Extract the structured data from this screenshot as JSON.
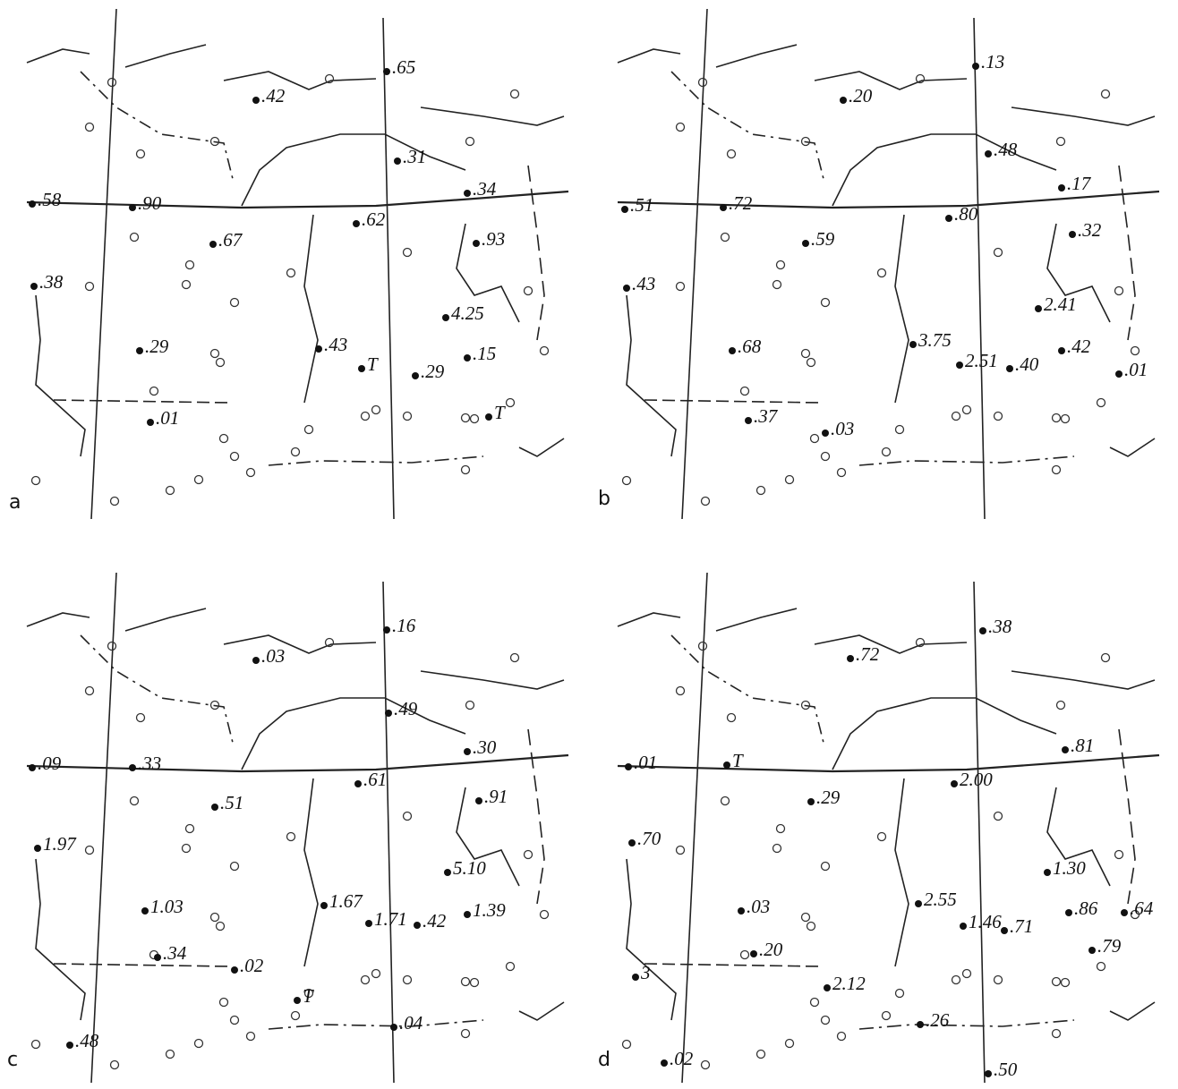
{
  "panels": [
    {
      "letter": "a",
      "stations": [
        ".65",
        ".42",
        ".31",
        ".34",
        ".58",
        ".90",
        ".62",
        ".67",
        ".93",
        ".38",
        "4.25",
        ".29",
        ".43",
        "T",
        ".29",
        ".15",
        ".01",
        "T"
      ]
    },
    {
      "letter": "b",
      "stations": [
        ".13",
        ".20",
        ".48",
        ".17",
        ".51",
        ".72",
        ".80",
        ".59",
        ".32",
        ".43",
        "2.41",
        ".68",
        "3.75",
        "2.51",
        ".40",
        ".42",
        ".01",
        ".37",
        ".03"
      ]
    },
    {
      "letter": "c",
      "stations": [
        ".16",
        ".03",
        ".49",
        ".30",
        ".09",
        ".33",
        ".61",
        ".51",
        ".91",
        "1.97",
        "5.10",
        "1.03",
        "1.67",
        "1.71",
        ".42",
        "1.39",
        ".34",
        ".02",
        "T",
        ".48",
        ".04"
      ]
    },
    {
      "letter": "d",
      "stations": [
        ".38",
        ".72",
        ".81",
        ".01",
        "T",
        "2.00",
        ".29",
        ".70",
        "1.30",
        "2.55",
        ".03",
        "1.46",
        ".71",
        ".86",
        ".64",
        ".79",
        ".20",
        "2.12",
        ".26",
        ".02",
        ".50",
        "3"
      ]
    }
  ]
}
